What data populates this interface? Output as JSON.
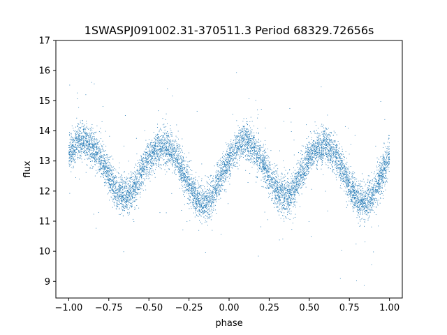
{
  "chart_data": {
    "type": "scatter",
    "title": "1SWASPJ091002.31-370511.3 Period 68329.72656s",
    "xlabel": "phase",
    "ylabel": "flux",
    "xlim": [
      -1.08,
      1.08
    ],
    "ylim": [
      8.45,
      17.0
    ],
    "xticks": [
      -1.0,
      -0.75,
      -0.5,
      -0.25,
      0.0,
      0.25,
      0.5,
      0.75,
      1.0
    ],
    "xtick_labels": [
      "−1.00",
      "−0.75",
      "−0.50",
      "−0.25",
      "0.00",
      "0.25",
      "0.50",
      "0.75",
      "1.00"
    ],
    "yticks": [
      9,
      10,
      11,
      12,
      13,
      14,
      15,
      16,
      17
    ],
    "ytick_labels": [
      "9",
      "10",
      "11",
      "12",
      "13",
      "14",
      "15",
      "16",
      "17"
    ],
    "grid": false,
    "legend": false,
    "marker_color": "#1f77b4",
    "phase_range": [
      -1.0,
      1.0
    ],
    "series": [
      {
        "x": [
          -1.0,
          -0.95,
          -0.9,
          -0.85,
          -0.8,
          -0.75,
          -0.7,
          -0.65,
          -0.6,
          -0.55,
          -0.5,
          -0.45,
          -0.4,
          -0.35,
          -0.3,
          -0.25,
          -0.2,
          -0.15,
          -0.1,
          -0.05,
          0.0,
          0.05,
          0.1,
          0.15,
          0.2,
          0.25,
          0.3,
          0.35,
          0.4,
          0.45,
          0.5,
          0.55,
          0.6,
          0.65,
          0.7,
          0.75,
          0.8,
          0.85,
          0.9,
          0.95,
          1.0
        ],
        "y": [
          13.3,
          13.6,
          13.7,
          13.45,
          13.05,
          12.5,
          12.0,
          11.85,
          12.0,
          12.6,
          13.1,
          13.4,
          13.5,
          13.3,
          12.8,
          12.2,
          11.7,
          11.6,
          11.9,
          12.5,
          13.0,
          13.5,
          13.7,
          13.45,
          13.05,
          12.5,
          12.0,
          11.85,
          12.0,
          12.6,
          13.1,
          13.4,
          13.5,
          13.3,
          12.8,
          12.2,
          11.7,
          11.6,
          11.9,
          12.5,
          13.2
        ],
        "scatter_sigma": 0.3,
        "n_points": 9000
      }
    ]
  }
}
